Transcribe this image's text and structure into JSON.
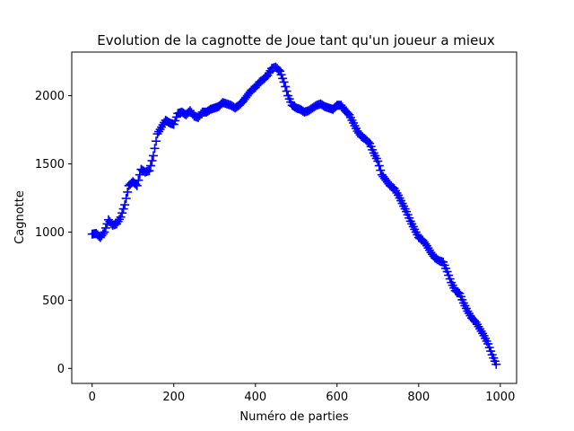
{
  "chart_data": {
    "type": "scatter",
    "title": "Evolution de la cagnotte de Joue tant qu'un joueur a mieux",
    "xlabel": "Numéro de parties",
    "ylabel": "Cagnotte",
    "xlim": [
      -50,
      1040
    ],
    "ylim": [
      -110,
      2320
    ],
    "xticks": [
      0,
      200,
      400,
      600,
      800,
      1000
    ],
    "yticks": [
      0,
      500,
      1000,
      1500,
      2000
    ],
    "grid": false,
    "marker": "+",
    "color": "#0000ff",
    "series": [
      {
        "x": [
          0,
          10,
          20,
          30,
          40,
          50,
          60,
          70,
          80,
          90,
          100,
          110,
          120,
          130,
          140,
          150,
          160,
          170,
          180,
          190,
          200,
          210,
          220,
          230,
          240,
          250,
          260,
          270,
          280,
          290,
          300,
          310,
          320,
          330,
          340,
          350,
          360,
          370,
          380,
          390,
          400,
          410,
          420,
          430,
          440,
          450,
          460,
          470,
          480,
          490,
          500,
          510,
          520,
          530,
          540,
          550,
          560,
          570,
          580,
          590,
          600,
          610,
          620,
          630,
          640,
          650,
          660,
          670,
          680,
          690,
          700,
          710,
          720,
          730,
          740,
          750,
          760,
          770,
          780,
          790,
          800,
          810,
          820,
          830,
          840,
          850,
          860,
          870,
          880,
          890,
          900,
          910,
          920,
          930,
          940,
          950,
          960,
          970,
          980,
          990
        ],
        "y": [
          985,
          990,
          960,
          1000,
          1090,
          1050,
          1060,
          1110,
          1200,
          1340,
          1370,
          1340,
          1460,
          1440,
          1450,
          1560,
          1720,
          1770,
          1820,
          1800,
          1790,
          1870,
          1880,
          1860,
          1890,
          1850,
          1840,
          1880,
          1880,
          1900,
          1910,
          1920,
          1950,
          1940,
          1930,
          1910,
          1930,
          1960,
          2000,
          2040,
          2060,
          2100,
          2120,
          2150,
          2200,
          2210,
          2180,
          2100,
          2000,
          1930,
          1910,
          1900,
          1880,
          1890,
          1910,
          1930,
          1940,
          1920,
          1910,
          1900,
          1930,
          1930,
          1890,
          1860,
          1800,
          1740,
          1700,
          1680,
          1650,
          1580,
          1520,
          1420,
          1380,
          1340,
          1320,
          1270,
          1210,
          1150,
          1080,
          1020,
          960,
          940,
          900,
          850,
          810,
          790,
          780,
          710,
          630,
          570,
          550,
          480,
          420,
          370,
          340,
          290,
          240,
          180,
          100,
          30
        ]
      }
    ]
  }
}
